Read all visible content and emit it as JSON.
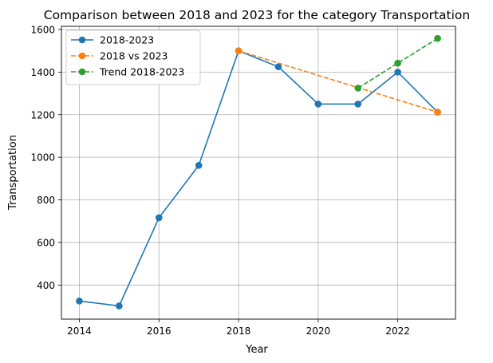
{
  "chart_data": {
    "type": "line",
    "title": "Comparison between 2018 and 2023 for the category Transportation",
    "xlabel": "Year",
    "ylabel": "Transportation",
    "xlim": [
      2013.55,
      2023.45
    ],
    "ylim": [
      240,
      1615
    ],
    "xticks": [
      2014,
      2016,
      2018,
      2020,
      2022
    ],
    "yticks": [
      400,
      600,
      800,
      1000,
      1200,
      1400,
      1600
    ],
    "grid": true,
    "legend_position": "top-left",
    "series": [
      {
        "name": "2018-2023",
        "color": "#1f77b4",
        "linestyle": "solid",
        "x": [
          2014,
          2015,
          2016,
          2017,
          2018,
          2019,
          2020,
          2021,
          2022,
          2023
        ],
        "y": [
          325,
          302,
          716,
          962,
          1500,
          1425,
          1250,
          1250,
          1400,
          1212
        ]
      },
      {
        "name": "2018 vs 2023",
        "color": "#ff7f0e",
        "linestyle": "dashed",
        "x": [
          2018,
          2023
        ],
        "y": [
          1500,
          1212
        ]
      },
      {
        "name": "Trend 2018-2023",
        "color": "#2ca02c",
        "linestyle": "dashed",
        "x": [
          2021,
          2022,
          2023
        ],
        "y": [
          1325,
          1442,
          1558
        ]
      }
    ]
  }
}
